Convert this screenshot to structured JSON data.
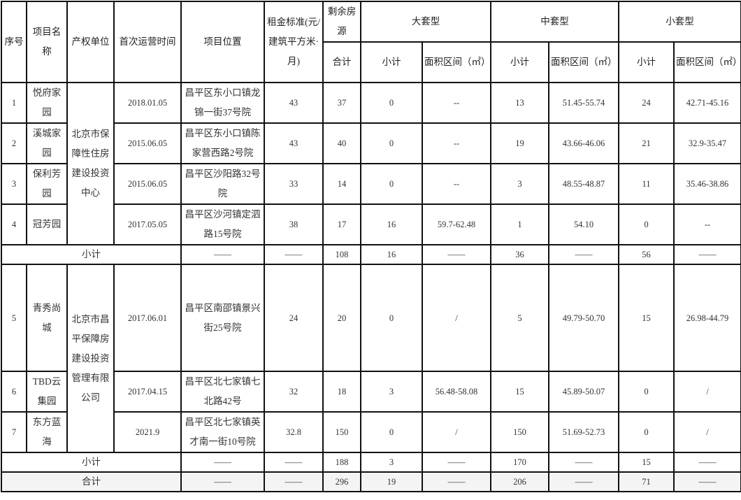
{
  "headers": {
    "seq": "序号",
    "name": "项目名称",
    "owner": "产权单位",
    "first_op": "首次运营时间",
    "location": "项目位置",
    "rent": "租金标准(元/建筑平方米·月)",
    "remaining": "剩余房源",
    "total": "合计",
    "large": "大套型",
    "medium": "中套型",
    "small": "小套型",
    "subtotal": "小计",
    "area_range": "面积区间（㎡）"
  },
  "groups": [
    {
      "owner": "北京市保障性住房建设投资中心",
      "rows": [
        {
          "seq": "1",
          "name": "悦府家园",
          "first_op": "2018.01.05",
          "location": "昌平区东小口镇龙锦一街37号院",
          "rent": "43",
          "total": "37",
          "large_n": "0",
          "large_area": "--",
          "medium_n": "13",
          "medium_area": "51.45-55.74",
          "small_n": "24",
          "small_area": "42.71-45.16"
        },
        {
          "seq": "2",
          "name": "溪城家园",
          "first_op": "2015.06.05",
          "location": "昌平区东小口镇陈家营西路2号院",
          "rent": "43",
          "total": "40",
          "large_n": "0",
          "large_area": "--",
          "medium_n": "19",
          "medium_area": "43.66-46.06",
          "small_n": "21",
          "small_area": "32.9-35.47"
        },
        {
          "seq": "3",
          "name": "保利芳园",
          "first_op": "2015.06.05",
          "location": "昌平区沙阳路32号院",
          "rent": "33",
          "total": "14",
          "large_n": "0",
          "large_area": "--",
          "medium_n": "3",
          "medium_area": "48.55-48.87",
          "small_n": "11",
          "small_area": "35.46-38.86"
        },
        {
          "seq": "4",
          "name": "冠芳园",
          "first_op": "2017.05.05",
          "location": "昌平区沙河镇定泗路15号院",
          "rent": "38",
          "total": "17",
          "large_n": "16",
          "large_area": "59.7-62.48",
          "medium_n": "1",
          "medium_area": "54.10",
          "small_n": "0",
          "small_area": "--"
        }
      ],
      "subtotal": {
        "label": "小计",
        "location": "——",
        "rent": "——",
        "total": "108",
        "large_n": "16",
        "large_area": "——",
        "medium_n": "36",
        "medium_area": "——",
        "small_n": "56",
        "small_area": "——"
      }
    },
    {
      "owner": "北京市昌平保障房建设投资管理有限公司",
      "rows": [
        {
          "seq": "5",
          "name": "青秀尚城",
          "first_op": "2017.06.01",
          "location": "昌平区南邵镇景兴街25号院",
          "rent": "24",
          "total": "20",
          "large_n": "0",
          "large_area": "/",
          "medium_n": "5",
          "medium_area": "49.79-50.70",
          "small_n": "15",
          "small_area": "26.98-44.79"
        },
        {
          "seq": "6",
          "name": "TBD云集园",
          "first_op": "2017.04.15",
          "location": "昌平区北七家镇七北路42号",
          "rent": "32",
          "total": "18",
          "large_n": "3",
          "large_area": "56.48-58.08",
          "medium_n": "15",
          "medium_area": "45.89-50.07",
          "small_n": "0",
          "small_area": "/"
        },
        {
          "seq": "7",
          "name": "东方蓝海",
          "first_op": "2021.9",
          "location": "昌平区北七家镇英才南一街10号院",
          "rent": "32.8",
          "total": "150",
          "large_n": "0",
          "large_area": "/",
          "medium_n": "150",
          "medium_area": "51.69-52.73",
          "small_n": "0",
          "small_area": "/"
        }
      ],
      "subtotal": {
        "label": "小计",
        "location": "——",
        "rent": "——",
        "total": "188",
        "large_n": "3",
        "large_area": "——",
        "medium_n": "170",
        "medium_area": "——",
        "small_n": "15",
        "small_area": "——"
      }
    }
  ],
  "grand_total": {
    "label": "合计",
    "location": "——",
    "rent": "——",
    "total": "296",
    "large_n": "19",
    "large_area": "——",
    "medium_n": "206",
    "medium_area": "——",
    "small_n": "71",
    "small_area": "——"
  }
}
